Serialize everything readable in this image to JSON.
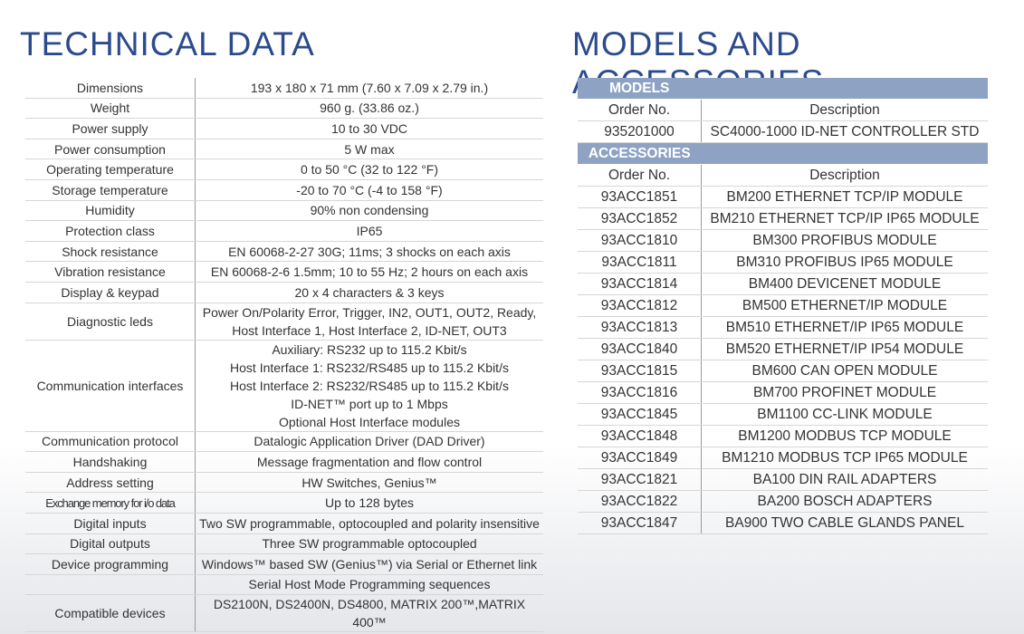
{
  "left": {
    "title": "TECHNICAL DATA",
    "rows": [
      {
        "label": "Dimensions",
        "lines": [
          "193 x 180 x 71 mm (7.60 x 7.09 x 2.79 in.)"
        ]
      },
      {
        "label": "Weight",
        "lines": [
          "960 g. (33.86 oz.)"
        ]
      },
      {
        "label": "Power supply",
        "lines": [
          "10 to 30 VDC"
        ]
      },
      {
        "label": "Power consumption",
        "lines": [
          "5 W max"
        ]
      },
      {
        "label": "Operating temperature",
        "lines": [
          "0 to 50 °C (32 to 122 °F)"
        ]
      },
      {
        "label": "Storage temperature",
        "lines": [
          "-20 to 70 °C (-4 to 158 °F)"
        ]
      },
      {
        "label": "Humidity",
        "lines": [
          "90% non condensing"
        ]
      },
      {
        "label": "Protection class",
        "lines": [
          "IP65"
        ]
      },
      {
        "label": "Shock resistance",
        "lines": [
          "EN 60068-2-27 30G; 11ms; 3 shocks on each axis"
        ]
      },
      {
        "label": "Vibration resistance",
        "lines": [
          "EN 60068-2-6 1.5mm; 10 to 55 Hz; 2 hours on each axis"
        ]
      },
      {
        "label": "Display & keypad",
        "lines": [
          "20 x 4 characters & 3 keys"
        ]
      },
      {
        "label": "Diagnostic leds",
        "lines": [
          "Power On/Polarity Error, Trigger, IN2, OUT1, OUT2, Ready,",
          "Host Interface 1, Host Interface 2, ID-NET, OUT3"
        ]
      },
      {
        "label": "Communication interfaces",
        "lines": [
          "Auxiliary: RS232 up to 115.2 Kbit/s",
          "Host Interface 1: RS232/RS485 up to 115.2 Kbit/s",
          "Host Interface 2: RS232/RS485 up to 115.2 Kbit/s",
          "ID-NET™ port up to 1 Mbps",
          "Optional Host Interface modules"
        ]
      },
      {
        "label": "Communication protocol",
        "lines": [
          "Datalogic Application Driver (DAD Driver)"
        ]
      },
      {
        "label": "Handshaking",
        "lines": [
          "Message fragmentation and flow control"
        ]
      },
      {
        "label": "Address setting",
        "lines": [
          "HW Switches, Genius™"
        ]
      },
      {
        "label": "Exchange memory for i/o data",
        "lines": [
          "Up to 128 bytes"
        ]
      },
      {
        "label": "Digital inputs",
        "lines": [
          "Two SW programmable, optocoupled and polarity insensitive"
        ]
      },
      {
        "label": "Digital outputs",
        "lines": [
          "Three SW programmable optocoupled"
        ]
      },
      {
        "label": "Device programming",
        "lines": [
          "Windows™ based SW (Genius™) via Serial or Ethernet link"
        ]
      },
      {
        "lines": [
          "Serial Host Mode Programming sequences"
        ]
      },
      {
        "label": "Compatible devices",
        "lines": [
          "DS2100N, DS2400N, DS4800, MATRIX 200™,MATRIX 400™"
        ]
      }
    ]
  },
  "right": {
    "title": "MODELS AND ACCESSORIES",
    "sections": [
      {
        "heading": "MODELS",
        "columns": [
          "Order No.",
          "Description"
        ],
        "rows": [
          [
            "935201000",
            "SC4000-1000 ID-NET CONTROLLER STD"
          ]
        ]
      },
      {
        "heading": "ACCESSORIES",
        "columns": [
          "Order No.",
          "Description"
        ],
        "rows": [
          [
            "93ACC1851",
            "BM200 ETHERNET TCP/IP MODULE"
          ],
          [
            "93ACC1852",
            "BM210 ETHERNET TCP/IP IP65 MODULE"
          ],
          [
            "93ACC1810",
            "BM300 PROFIBUS MODULE"
          ],
          [
            "93ACC1811",
            "BM310 PROFIBUS IP65 MODULE"
          ],
          [
            "93ACC1814",
            "BM400 DEVICENET MODULE"
          ],
          [
            "93ACC1812",
            "BM500 ETHERNET/IP MODULE"
          ],
          [
            "93ACC1813",
            "BM510 ETHERNET/IP IP65 MODULE"
          ],
          [
            "93ACC1840",
            "BM520 ETHERNET/IP IP54 MODULE"
          ],
          [
            "93ACC1815",
            "BM600 CAN OPEN MODULE"
          ],
          [
            "93ACC1816",
            "BM700 PROFINET MODULE"
          ],
          [
            "93ACC1845",
            "BM1100 CC-LINK MODULE"
          ],
          [
            "93ACC1848",
            "BM1200 MODBUS TCP MODULE"
          ],
          [
            "93ACC1849",
            "BM1210 MODBUS TCP IP65 MODULE"
          ],
          [
            "93ACC1821",
            "BA100 DIN RAIL ADAPTERS"
          ],
          [
            "93ACC1822",
            "BA200 BOSCH ADAPTERS"
          ],
          [
            "93ACC1847",
            "BA900 TWO CABLE GLANDS PANEL"
          ]
        ]
      }
    ]
  }
}
